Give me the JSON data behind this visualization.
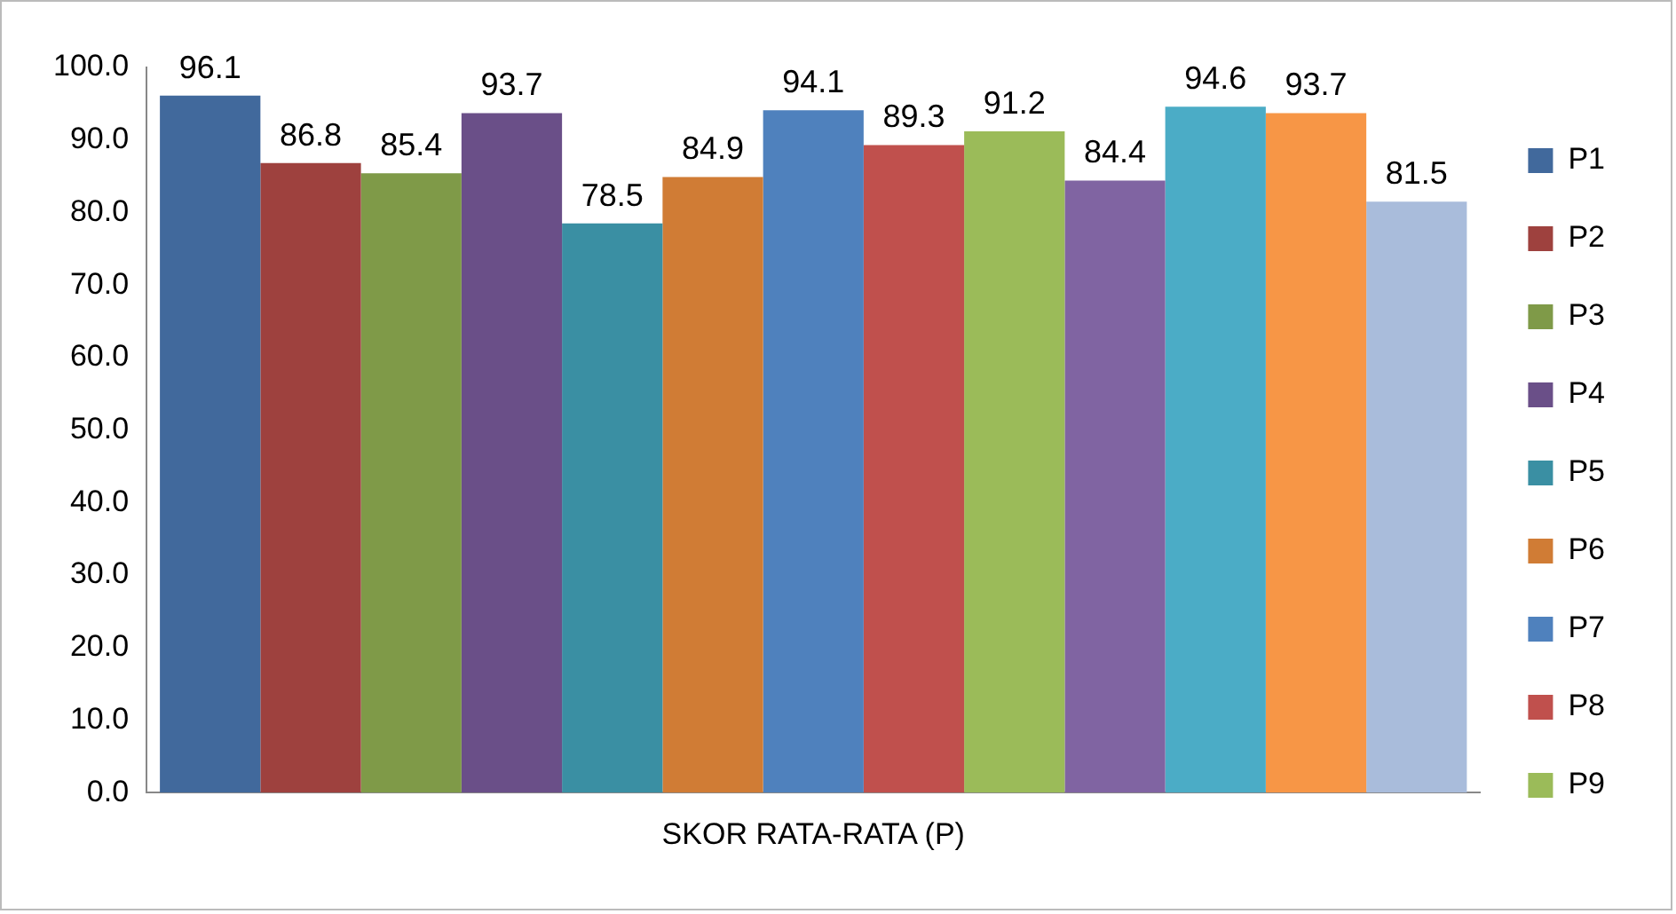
{
  "chart_data": {
    "type": "bar",
    "categories": [
      "SKOR RATA-RATA (P)"
    ],
    "series": [
      {
        "name": "P1",
        "color": "#41699c",
        "values": [
          96.1
        ]
      },
      {
        "name": "P2",
        "color": "#9e413e",
        "values": [
          86.8
        ]
      },
      {
        "name": "P3",
        "color": "#7f9a48",
        "values": [
          85.4
        ]
      },
      {
        "name": "P4",
        "color": "#6a4f88",
        "values": [
          93.7
        ]
      },
      {
        "name": "P5",
        "color": "#3a8fa3",
        "values": [
          78.5
        ]
      },
      {
        "name": "P6",
        "color": "#d07c35",
        "values": [
          84.9
        ]
      },
      {
        "name": "P7",
        "color": "#4f81bd",
        "values": [
          94.1
        ]
      },
      {
        "name": "P8",
        "color": "#c0504d",
        "values": [
          89.3
        ]
      },
      {
        "name": "P9",
        "color": "#9bbb59",
        "values": [
          91.2
        ]
      },
      {
        "color": "#8064a2",
        "values": [
          84.4
        ]
      },
      {
        "color": "#4bacc6",
        "values": [
          94.6
        ]
      },
      {
        "color": "#f79646",
        "values": [
          93.7
        ]
      },
      {
        "color": "#a9bcdb",
        "values": [
          81.5
        ]
      }
    ],
    "ylim": [
      0,
      100
    ],
    "yticks": [
      {
        "value": 0,
        "label": "0.0"
      },
      {
        "value": 10,
        "label": "10.0"
      },
      {
        "value": 20,
        "label": "20.0"
      },
      {
        "value": 30,
        "label": "30.0"
      },
      {
        "value": 40,
        "label": "40.0"
      },
      {
        "value": 50,
        "label": "50.0"
      },
      {
        "value": 60,
        "label": "60.0"
      },
      {
        "value": 70,
        "label": "70.0"
      },
      {
        "value": 80,
        "label": "80.0"
      },
      {
        "value": 90,
        "label": "90.0"
      },
      {
        "value": 100,
        "label": "100.0"
      }
    ],
    "grid": false,
    "legend": "right",
    "data_labels": true
  }
}
